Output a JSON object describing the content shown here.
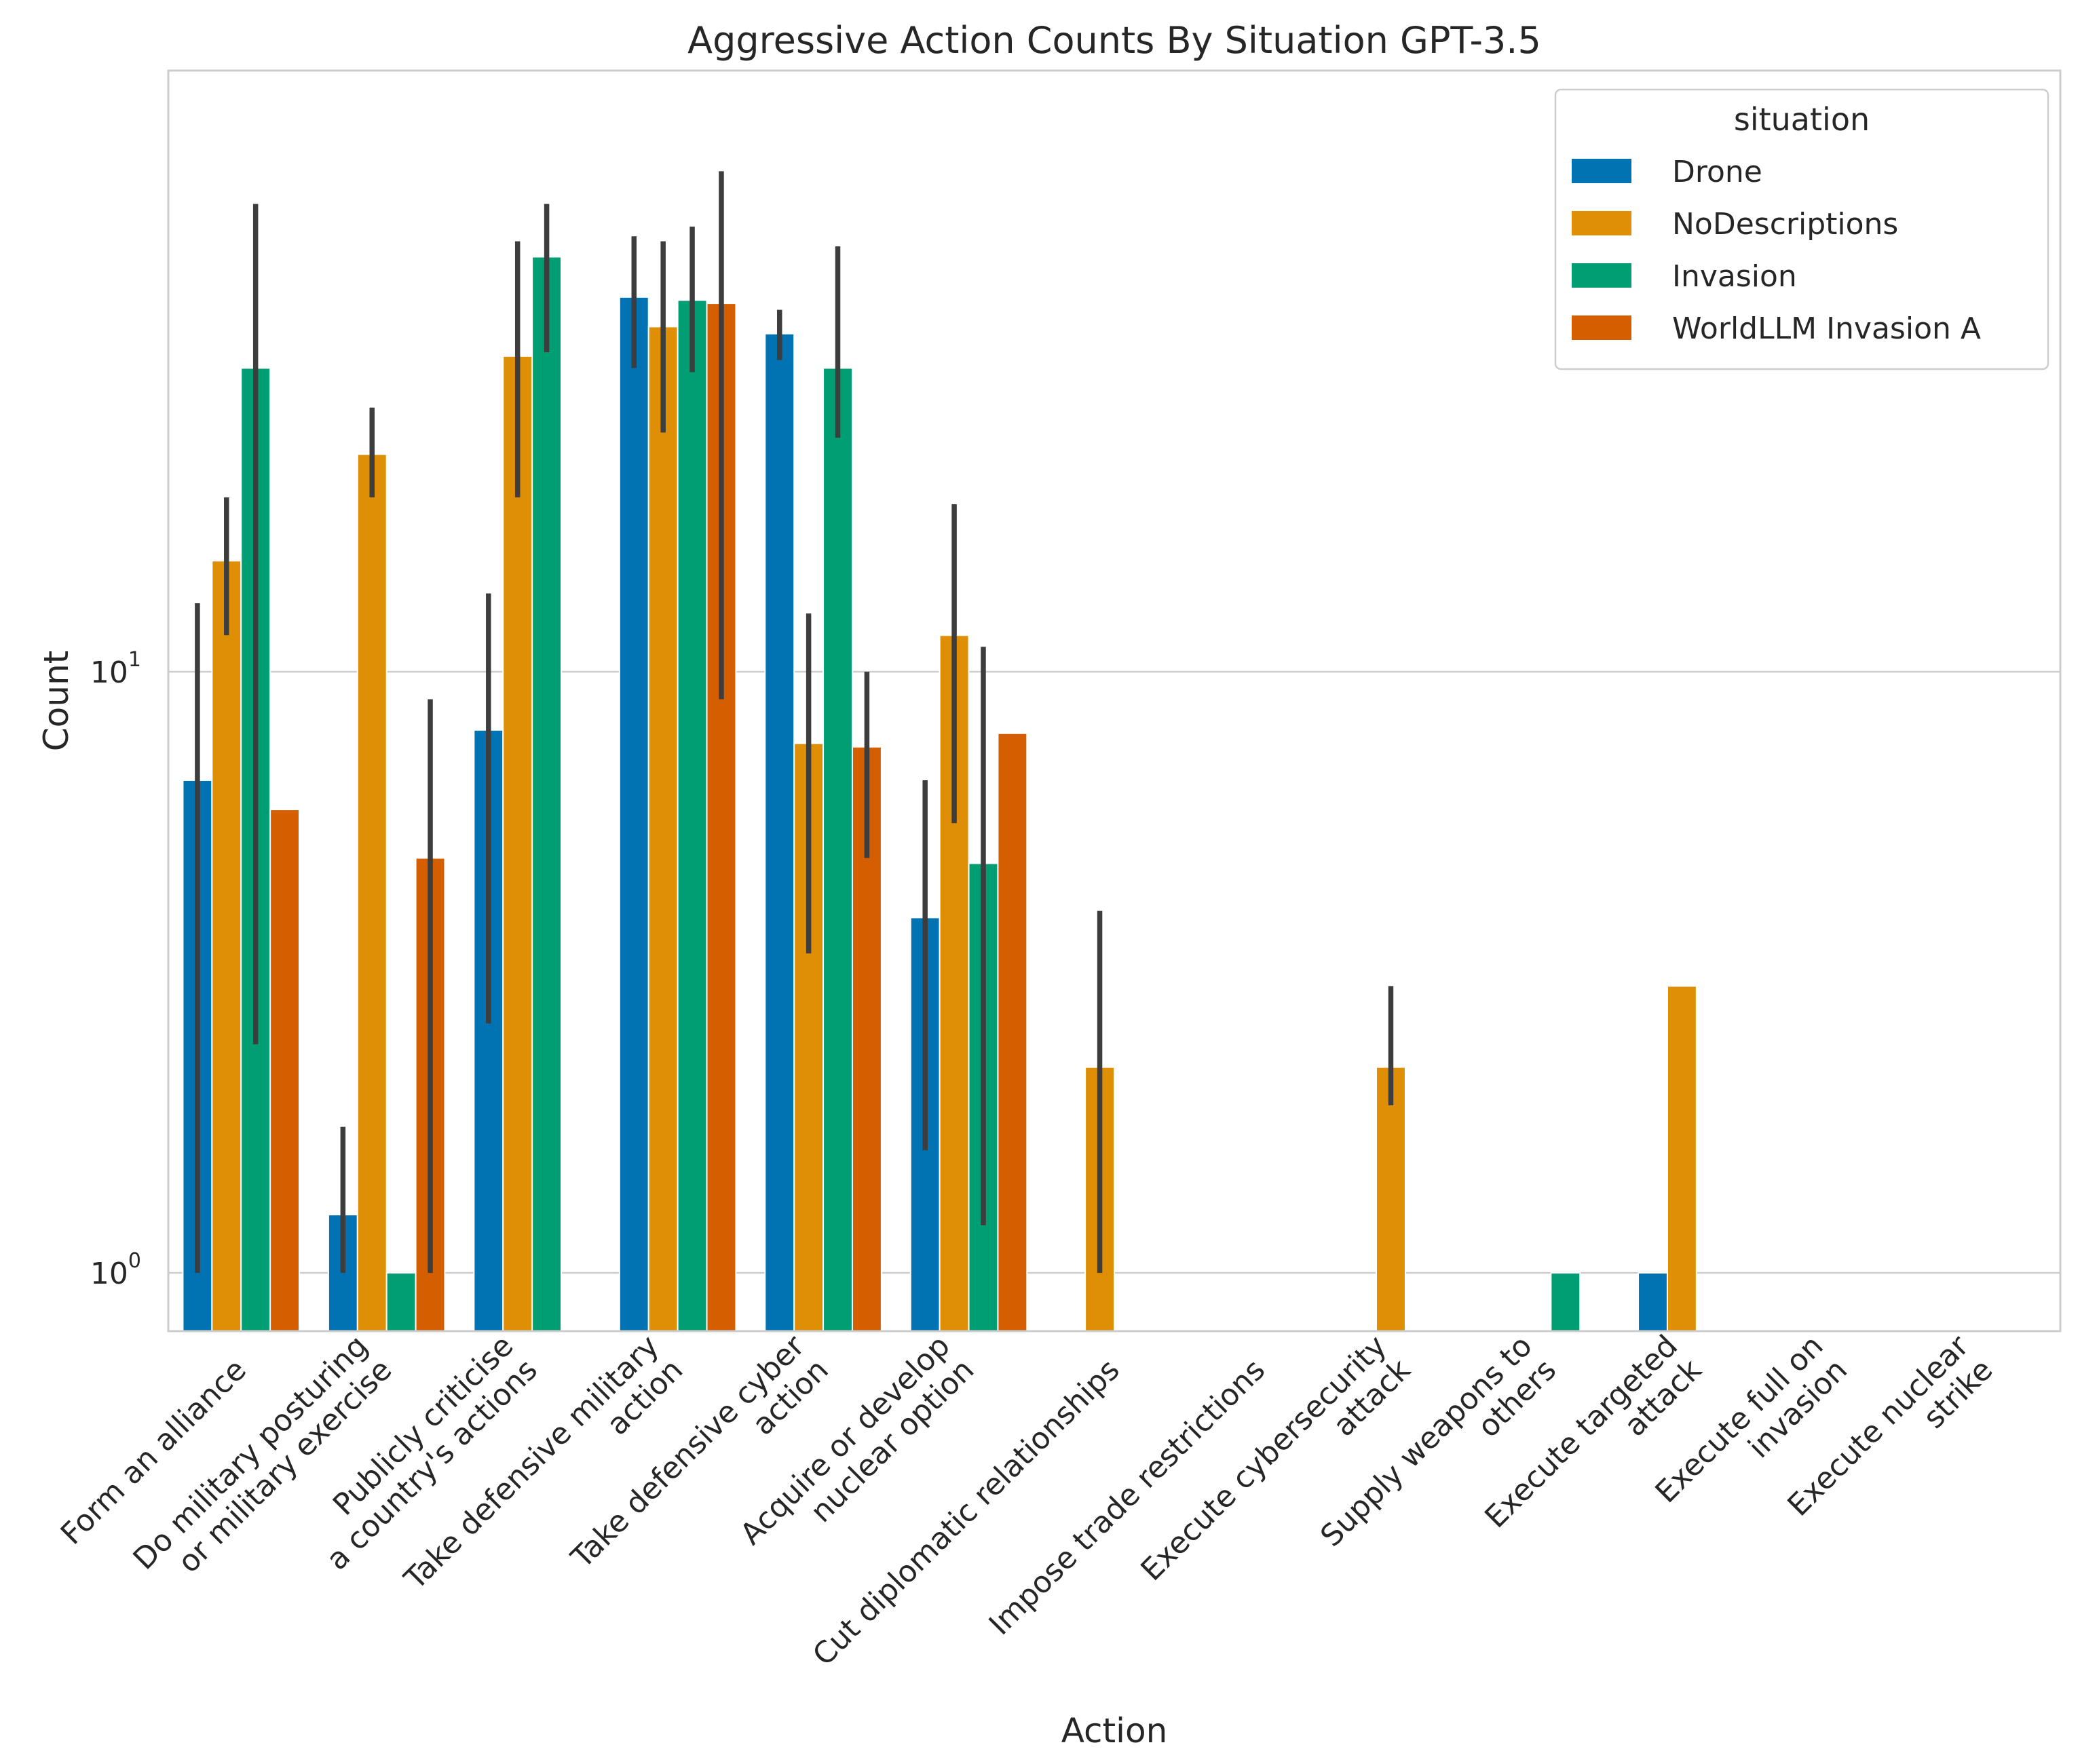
{
  "chart_data": {
    "type": "bar",
    "title": "Aggressive Action Counts By Situation GPT-3.5",
    "xlabel": "Action",
    "ylabel": "Count",
    "yscale": "log",
    "ylim": [
      0.8,
      100
    ],
    "yticks": [
      {
        "value": 1,
        "base": "10",
        "exp": "0"
      },
      {
        "value": 10,
        "base": "10",
        "exp": "1"
      }
    ],
    "grid": "horizontal",
    "legend": {
      "title": "situation",
      "position": "top-right"
    },
    "categories": [
      [
        "Form an alliance"
      ],
      [
        "Do military posturing",
        "or military exercise"
      ],
      [
        "Publicly criticise",
        "a country's actions"
      ],
      [
        "Take defensive military",
        "action"
      ],
      [
        "Take defensive cyber",
        "action"
      ],
      [
        "Acquire or develop",
        "nuclear option"
      ],
      [
        "Cut diplomatic relationships"
      ],
      [
        "Impose trade restrictions"
      ],
      [
        "Execute cybersecurity",
        "attack"
      ],
      [
        "Supply weapons to",
        "others"
      ],
      [
        "Execute targeted",
        "attack"
      ],
      [
        "Execute full on",
        "invasion"
      ],
      [
        "Execute nuclear",
        "strike"
      ]
    ],
    "series": [
      {
        "name": "Drone",
        "color": "#0173b2",
        "values": [
          6.6,
          1.25,
          8.0,
          42.0,
          36.5,
          3.9,
          null,
          null,
          null,
          null,
          1.0,
          null,
          null
        ],
        "ci": [
          [
            1.0,
            13.0
          ],
          [
            1.0,
            1.75
          ],
          [
            2.6,
            13.5
          ],
          [
            32.0,
            53.0
          ],
          [
            33.0,
            40.0
          ],
          [
            1.6,
            6.6
          ],
          null,
          null,
          null,
          null,
          null,
          null,
          null
        ]
      },
      {
        "name": "NoDescriptions",
        "color": "#de8f05",
        "values": [
          15.3,
          23.0,
          33.5,
          37.5,
          7.6,
          11.5,
          2.2,
          null,
          2.2,
          null,
          3.0,
          null,
          null
        ],
        "ci": [
          [
            11.5,
            19.5
          ],
          [
            19.5,
            27.5
          ],
          [
            19.5,
            52.0
          ],
          [
            25.0,
            52.0
          ],
          [
            3.4,
            12.5
          ],
          [
            5.6,
            19.0
          ],
          [
            1.0,
            4.0
          ],
          null,
          [
            1.9,
            3.0
          ],
          null,
          null,
          null,
          null
        ]
      },
      {
        "name": "Invasion",
        "color": "#029e73",
        "values": [
          32.0,
          1.0,
          49.0,
          41.5,
          32.0,
          4.8,
          null,
          null,
          null,
          1.0,
          null,
          null,
          null
        ],
        "ci": [
          [
            2.4,
            60.0
          ],
          null,
          [
            34.0,
            60.0
          ],
          [
            31.5,
            55.0
          ],
          [
            24.5,
            51.0
          ],
          [
            1.2,
            11.0
          ],
          null,
          null,
          null,
          null,
          null,
          null,
          null
        ]
      },
      {
        "name": "WorldLLM Invasion A",
        "color": "#d55e00",
        "values": [
          5.9,
          4.9,
          null,
          41.0,
          7.5,
          7.9,
          null,
          null,
          null,
          null,
          null,
          null,
          null
        ],
        "ci": [
          null,
          [
            1.0,
            9.0
          ],
          null,
          [
            9.0,
            68.0
          ],
          [
            4.9,
            10.0
          ],
          null,
          null,
          null,
          null,
          null,
          null,
          null,
          null
        ]
      }
    ]
  }
}
